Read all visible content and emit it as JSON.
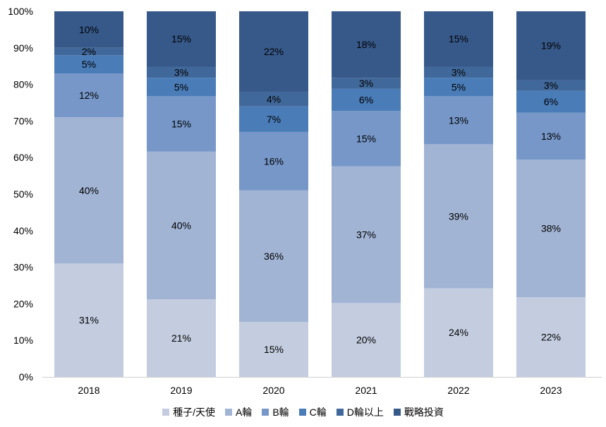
{
  "chart_data": {
    "type": "bar",
    "stacked": true,
    "categories": [
      "2018",
      "2019",
      "2020",
      "2021",
      "2022",
      "2023"
    ],
    "series": [
      {
        "name": "種子/天使",
        "color": "#c4cde0",
        "values": [
          31,
          21,
          15,
          20,
          24,
          22
        ],
        "labels": [
          "31%",
          "21%",
          "15%",
          "20%",
          "24%",
          "22%"
        ]
      },
      {
        "name": "A輪",
        "color": "#a2b4d4",
        "values": [
          40,
          40,
          36,
          37,
          39,
          38
        ],
        "labels": [
          "40%",
          "40%",
          "36%",
          "37%",
          "39%",
          "38%"
        ]
      },
      {
        "name": "B輪",
        "color": "#7697c8",
        "values": [
          12,
          15,
          16,
          15,
          13,
          13
        ],
        "labels": [
          "12%",
          "15%",
          "16%",
          "15%",
          "13%",
          "13%"
        ]
      },
      {
        "name": "C輪",
        "color": "#4a7cb8",
        "values": [
          5,
          5,
          7,
          6,
          5,
          6
        ],
        "labels": [
          "5%",
          "5%",
          "7%",
          "6%",
          "5%",
          "6%"
        ]
      },
      {
        "name": "D輪以上",
        "color": "#41689a",
        "values": [
          2,
          3,
          4,
          3,
          3,
          3
        ],
        "labels": [
          "2%",
          "3%",
          "4%",
          "3%",
          "3%",
          "3%"
        ]
      },
      {
        "name": "戰略投資",
        "color": "#37598a",
        "values": [
          10,
          15,
          22,
          18,
          15,
          19
        ],
        "labels": [
          "10%",
          "15%",
          "22%",
          "18%",
          "15%",
          "19%"
        ]
      }
    ],
    "y_ticks": [
      "0%",
      "10%",
      "20%",
      "30%",
      "40%",
      "50%",
      "60%",
      "70%",
      "80%",
      "90%",
      "100%"
    ],
    "ylim": [
      0,
      100
    ],
    "grid": false,
    "legend_position": "bottom"
  }
}
